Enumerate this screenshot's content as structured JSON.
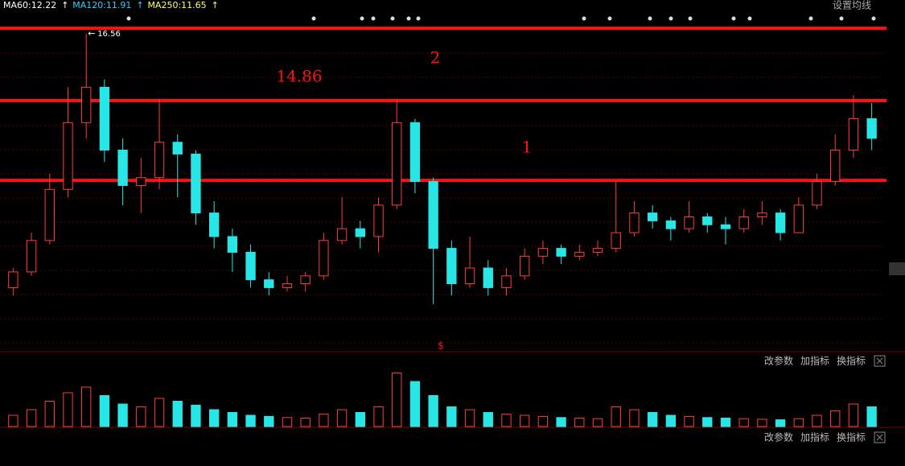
{
  "chart_data": {
    "type": "candlestick",
    "ma_labels": [
      "MA60:12.22",
      "MA120:11.91",
      "MA250:11.65"
    ],
    "ma_colors": [
      "#ffffff",
      "#33ccff",
      "#ffff66"
    ],
    "settings_label": "设置均线",
    "open": [
      10.1,
      10.5,
      11.3,
      12.6,
      14.3,
      15.2,
      13.6,
      12.7,
      12.9,
      13.8,
      13.5,
      12.0,
      11.4,
      11.0,
      10.3,
      10.1,
      10.2,
      10.4,
      11.3,
      11.6,
      11.4,
      12.2,
      14.3,
      12.8,
      11.1,
      10.2,
      10.6,
      10.1,
      10.4,
      10.9,
      11.1,
      10.9,
      11.0,
      11.1,
      11.5,
      12.0,
      11.8,
      11.6,
      11.9,
      11.7,
      11.6,
      11.9,
      12.0,
      11.5,
      12.2,
      12.8,
      13.6,
      14.4
    ],
    "close": [
      10.5,
      11.3,
      12.6,
      14.3,
      15.2,
      13.6,
      12.7,
      12.9,
      13.8,
      13.5,
      12.0,
      11.4,
      11.0,
      10.3,
      10.1,
      10.2,
      10.4,
      11.3,
      11.6,
      11.4,
      12.2,
      14.3,
      12.8,
      11.1,
      10.2,
      10.6,
      10.1,
      10.4,
      10.9,
      11.1,
      10.9,
      11.0,
      11.1,
      11.5,
      12.0,
      11.8,
      11.6,
      11.9,
      11.7,
      11.6,
      11.9,
      12.0,
      11.5,
      12.2,
      12.8,
      13.6,
      14.4,
      13.9
    ],
    "high": [
      10.6,
      11.5,
      13.0,
      15.2,
      16.56,
      15.4,
      13.9,
      13.4,
      14.9,
      14.0,
      13.6,
      12.3,
      11.6,
      11.2,
      10.5,
      10.4,
      10.5,
      11.5,
      12.4,
      11.8,
      12.4,
      14.86,
      14.4,
      12.9,
      11.3,
      11.4,
      10.8,
      10.6,
      11.1,
      11.3,
      11.2,
      11.2,
      11.3,
      12.8,
      12.3,
      12.2,
      11.9,
      12.3,
      12.0,
      11.9,
      12.1,
      12.3,
      12.1,
      12.4,
      13.0,
      14.0,
      15.0,
      14.8
    ],
    "low": [
      9.9,
      10.4,
      11.2,
      12.4,
      13.9,
      13.3,
      12.2,
      12.0,
      12.6,
      12.4,
      11.7,
      11.1,
      10.5,
      10.1,
      9.9,
      10.0,
      10.0,
      10.3,
      11.2,
      11.1,
      11.0,
      12.1,
      12.5,
      9.68,
      9.9,
      10.1,
      9.9,
      9.9,
      10.3,
      10.7,
      10.7,
      10.8,
      10.9,
      11.0,
      11.4,
      11.6,
      11.3,
      11.5,
      11.5,
      11.2,
      11.5,
      11.7,
      11.3,
      11.5,
      12.1,
      12.7,
      13.4,
      13.6
    ],
    "volume": [
      20,
      30,
      45,
      60,
      70,
      55,
      40,
      35,
      50,
      45,
      38,
      30,
      25,
      20,
      18,
      16,
      15,
      22,
      30,
      25,
      35,
      95,
      80,
      55,
      35,
      30,
      25,
      22,
      20,
      18,
      16,
      15,
      14,
      35,
      30,
      25,
      20,
      18,
      16,
      15,
      14,
      13,
      12,
      14,
      20,
      28,
      40,
      35
    ],
    "up_color": "#ff3c3c",
    "down_color": "#28e6e6",
    "ylim": [
      8.47,
      17.01
    ],
    "vlim": [
      0,
      100
    ],
    "levels": [
      16.7,
      14.86,
      12.83
    ],
    "level_color": "#ff1010",
    "annotations": [
      "2",
      "1"
    ],
    "marker": "$",
    "panel_buttons": [
      "改参数",
      "加指标",
      "换指标"
    ]
  }
}
